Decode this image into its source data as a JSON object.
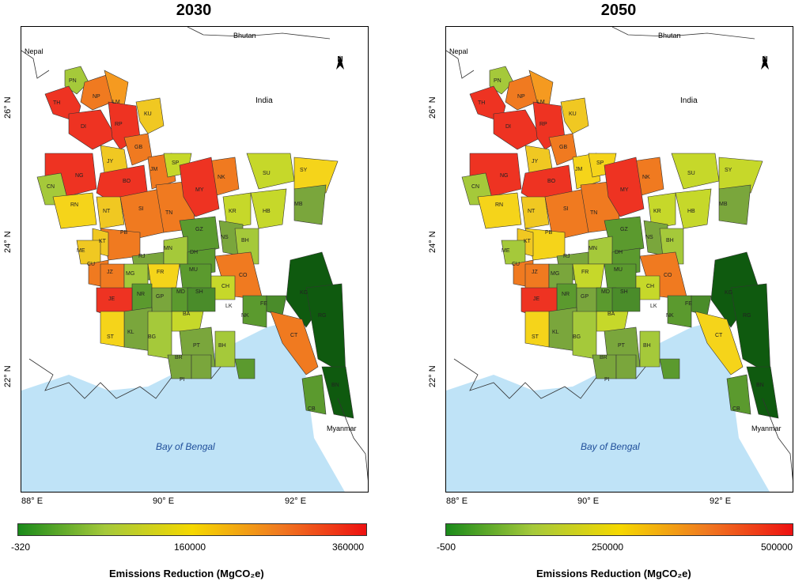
{
  "maps": [
    {
      "title": "2030",
      "legend": {
        "min": "-320",
        "mid": "160000",
        "max": "360000",
        "title": "Emissions Reduction (MgCO₂e)"
      }
    },
    {
      "title": "2050",
      "legend": {
        "min": "-500",
        "mid": "250000",
        "max": "500000",
        "title": "Emissions Reduction (MgCO₂e)"
      }
    }
  ],
  "axes": {
    "x_ticks": [
      "88° E",
      "90° E",
      "92° E"
    ],
    "y_ticks": [
      "26° N",
      "24° N",
      "22° N"
    ]
  },
  "place_labels": {
    "nepal": "Nepal",
    "bhutan": "Bhutan",
    "india": "India",
    "myanmar": "Myanmar",
    "bay": "Bay of Bengal"
  },
  "north_arrow_label": "N",
  "colors": {
    "sea": "#bfe3f7",
    "ramp_low": "#1a8a1a",
    "ramp_mid": "#f5d800",
    "ramp_high": "#ee1111"
  },
  "district_codes": [
    "PN",
    "TH",
    "NP",
    "LM",
    "KU",
    "DI",
    "RP",
    "GB",
    "NG",
    "JY",
    "BO",
    "JM",
    "SP",
    "NK",
    "SU",
    "SY",
    "CN",
    "RN",
    "NT",
    "SI",
    "TN",
    "MY",
    "KR",
    "HB",
    "MB",
    "PB",
    "KT",
    "GZ",
    "NS",
    "BH",
    "ME",
    "RJ",
    "MN",
    "DH",
    "CU",
    "JZ",
    "MG",
    "FR",
    "MU",
    "CO",
    "CH",
    "NR",
    "GP",
    "MD",
    "SH",
    "JE",
    "LK",
    "FE",
    "KG",
    "RG",
    "BA",
    "KL",
    "BG",
    "PT",
    "ST",
    "BH",
    "CT",
    "BR",
    "PI",
    "BN",
    "CB",
    "NK"
  ]
}
